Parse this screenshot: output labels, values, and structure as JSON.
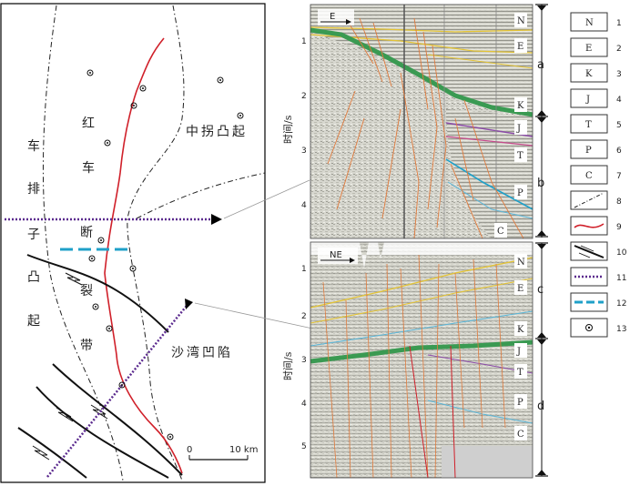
{
  "map": {
    "labels": {
      "chepaizi": [
        "车",
        "排",
        "子",
        "凸",
        "起"
      ],
      "hongche": [
        "红",
        "车",
        "断",
        "裂",
        "带"
      ],
      "zhongguai": "中拐凸起",
      "shawan": "沙湾凹陷"
    },
    "scale": {
      "zero": "0",
      "length": "10 km"
    }
  },
  "section_top": {
    "direction": "E",
    "y_axis_label": "时间/s",
    "ticks": [
      "1",
      "2",
      "3",
      "4"
    ],
    "strata": [
      "N",
      "E",
      "K",
      "J",
      "T",
      "P",
      "C"
    ],
    "brackets": [
      "a",
      "b"
    ]
  },
  "section_bottom": {
    "direction": "NE",
    "y_axis_label": "时间/s",
    "ticks": [
      "1",
      "2",
      "3",
      "4",
      "5"
    ],
    "strata": [
      "N",
      "E",
      "K",
      "J",
      "T",
      "P",
      "C"
    ],
    "brackets": [
      "c",
      "d"
    ]
  },
  "legend": [
    {
      "symbol": "N",
      "num": "1"
    },
    {
      "symbol": "E",
      "num": "2"
    },
    {
      "symbol": "K",
      "num": "3"
    },
    {
      "symbol": "J",
      "num": "4"
    },
    {
      "symbol": "T",
      "num": "5"
    },
    {
      "symbol": "P",
      "num": "6"
    },
    {
      "symbol": "C",
      "num": "7"
    },
    {
      "symbol": "boundary-line",
      "num": "8"
    },
    {
      "symbol": "red-fault",
      "num": "9"
    },
    {
      "symbol": "strike-slip",
      "num": "10"
    },
    {
      "symbol": "purple-dotted",
      "num": "11"
    },
    {
      "symbol": "cyan-dashed",
      "num": "12"
    },
    {
      "symbol": "well",
      "num": "13"
    }
  ],
  "colors": {
    "fault_red": "#d0202a",
    "purple": "#5b2a8e",
    "cyan": "#1fa0c8",
    "green": "#3a9a52",
    "orange": "#e07a3c"
  }
}
